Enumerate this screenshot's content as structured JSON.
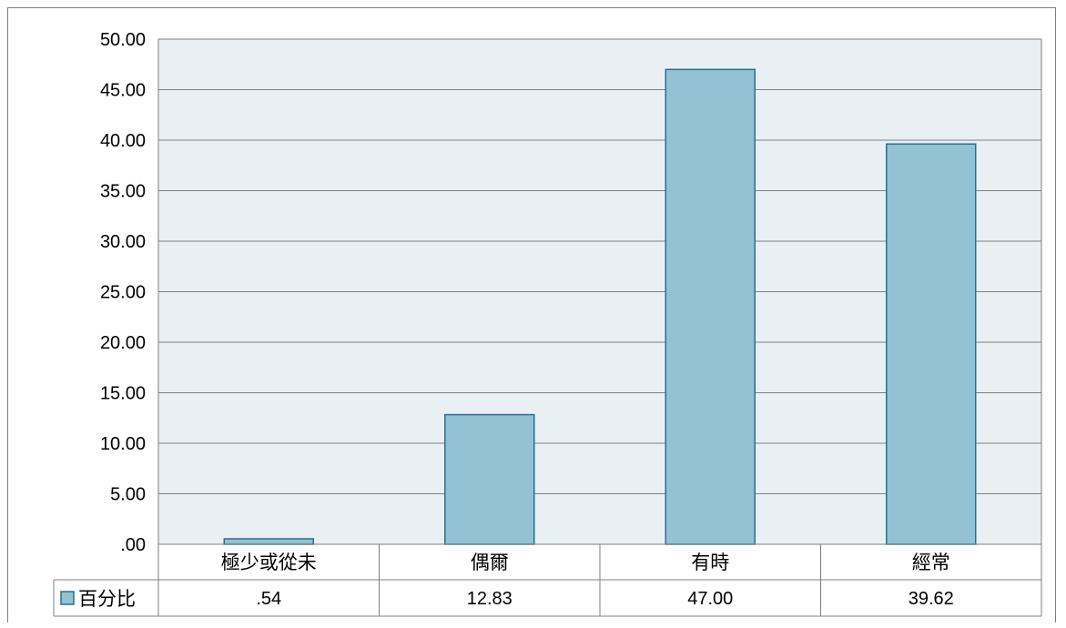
{
  "chart_data": {
    "type": "bar",
    "categories": [
      "極少或從未",
      "偶爾",
      "有時",
      "經常"
    ],
    "series": [
      {
        "name": "百分比",
        "values": [
          0.54,
          12.83,
          47.0,
          39.62
        ],
        "value_labels": [
          ".54",
          "12.83",
          "47.00",
          "39.62"
        ]
      }
    ],
    "yticks": [
      ".00",
      "5.00",
      "10.00",
      "15.00",
      "20.00",
      "25.00",
      "30.00",
      "35.00",
      "40.00",
      "45.00",
      "50.00"
    ],
    "ylim": [
      0,
      50
    ],
    "grid": true,
    "legend": "data-table",
    "colors": {
      "bar_fill": "#92c2d4",
      "bar_stroke": "#2e6e8a",
      "plot_bg": "#e9f0f4",
      "grid": "#7f7f7f",
      "legend_key_fill": "#92c2d4",
      "legend_key_stroke": "#2e6e8a"
    }
  }
}
